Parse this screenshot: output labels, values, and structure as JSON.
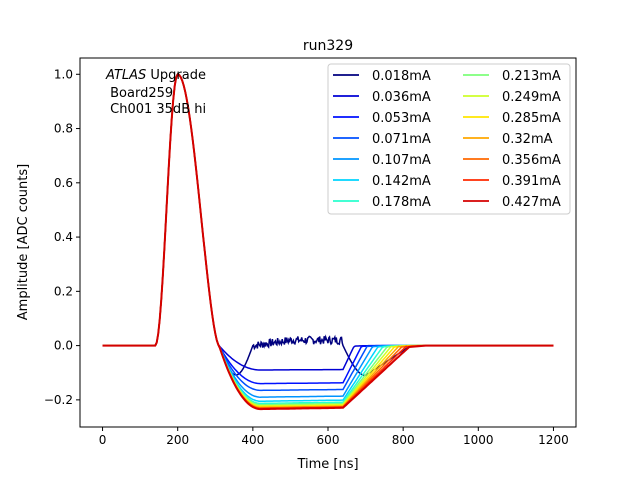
{
  "chart_data": {
    "type": "line",
    "title": "run329",
    "xlabel": "Time [ns]",
    "ylabel": "Amplitude [ADC counts]",
    "xlim": [
      -60,
      1260
    ],
    "ylim": [
      -0.3,
      1.06
    ],
    "xticks": [
      0,
      200,
      400,
      600,
      800,
      1000,
      1200
    ],
    "xtick_labels": [
      "0",
      "200",
      "400",
      "600",
      "800",
      "1000",
      "1200"
    ],
    "yticks": [
      -0.2,
      0.0,
      0.2,
      0.4,
      0.6,
      0.8,
      1.0
    ],
    "ytick_labels": [
      "−0.2",
      "0.0",
      "0.2",
      "0.4",
      "0.6",
      "0.8",
      "1.0"
    ],
    "grid": false,
    "legend_position": "top-right",
    "legend_columns": 2,
    "annotation": {
      "italic": "ATLAS",
      "rest": " Upgrade",
      "line2": " Board259",
      "line3": " Ch001 35dB hi"
    },
    "series": [
      {
        "name": "0.018mA",
        "color": "#00007f",
        "trough": 0.0,
        "end": 650,
        "noisy": true
      },
      {
        "name": "0.036mA",
        "color": "#0000d5",
        "trough": -0.09,
        "end": 670
      },
      {
        "name": "0.053mA",
        "color": "#0010ff",
        "trough": -0.14,
        "end": 690
      },
      {
        "name": "0.071mA",
        "color": "#0050ff",
        "trough": -0.165,
        "end": 705
      },
      {
        "name": "0.107mA",
        "color": "#0094ff",
        "trough": -0.19,
        "end": 720
      },
      {
        "name": "0.142mA",
        "color": "#00d4ff",
        "trough": -0.205,
        "end": 735
      },
      {
        "name": "0.178mA",
        "color": "#29ffce",
        "trough": -0.213,
        "end": 748
      },
      {
        "name": "0.213mA",
        "color": "#7dff7a",
        "trough": -0.218,
        "end": 760
      },
      {
        "name": "0.249mA",
        "color": "#ceff29",
        "trough": -0.222,
        "end": 770
      },
      {
        "name": "0.285mA",
        "color": "#ffe600",
        "trough": -0.225,
        "end": 780
      },
      {
        "name": "0.32mA",
        "color": "#ffa700",
        "trough": -0.228,
        "end": 790
      },
      {
        "name": "0.356mA",
        "color": "#ff6800",
        "trough": -0.23,
        "end": 800
      },
      {
        "name": "0.391mA",
        "color": "#ff2900",
        "trough": -0.232,
        "end": 810
      },
      {
        "name": "0.427mA",
        "color": "#d40000",
        "trough": -0.234,
        "end": 820
      }
    ]
  }
}
